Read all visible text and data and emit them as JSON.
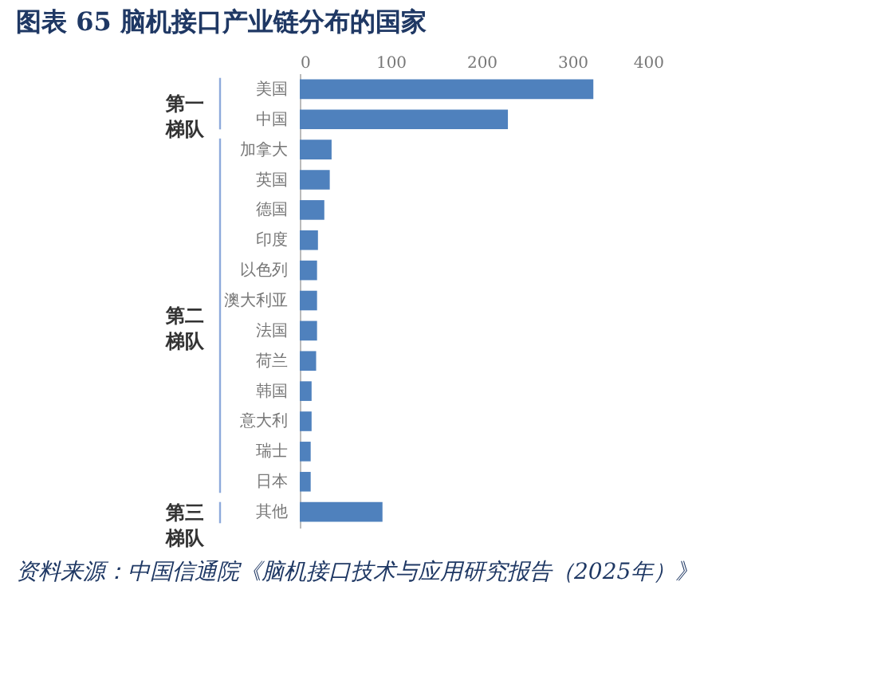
{
  "chart_data": {
    "type": "bar",
    "orientation": "horizontal",
    "title": "图表 65   脑机接口产业链分布的国家",
    "categories": [
      "美国",
      "中国",
      "加拿大",
      "英国",
      "德国",
      "印度",
      "以色列",
      "澳大利亚",
      "法国",
      "荷兰",
      "韩国",
      "意大利",
      "瑞士",
      "日本",
      "其他"
    ],
    "values": [
      323,
      229,
      35,
      33,
      27,
      20,
      19,
      19,
      19,
      18,
      13,
      13,
      12,
      12,
      91
    ],
    "color": "#4f81bd",
    "xlim": [
      0,
      400
    ],
    "xticks": [
      0,
      100,
      200,
      300,
      400
    ],
    "grid": false,
    "annotations": [
      "第一梯队",
      "第二梯队",
      "第三梯队",
      "资料来源：中国信通院《脑机接口技术与应用研究报告（2025年）》"
    ]
  }
}
